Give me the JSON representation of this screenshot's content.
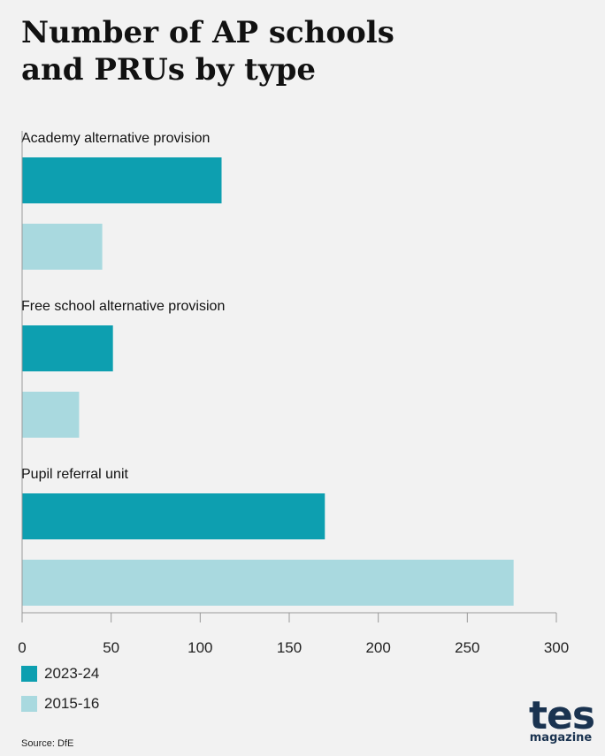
{
  "title_lines": [
    "Number of AP schools",
    "and PRUs by type"
  ],
  "source": "Source: DfE",
  "logo": {
    "main": "tes",
    "sub": "magazine"
  },
  "colors": {
    "series_2023": "#0d9fb0",
    "series_2015": "#a9d9df",
    "axis": "#999999",
    "background": "#f2f2f2"
  },
  "chart_data": {
    "type": "bar",
    "orientation": "horizontal",
    "categories": [
      "Academy alternative provision",
      "Free school alternative provision",
      "Pupil referral unit"
    ],
    "series": [
      {
        "name": "2023-24",
        "values": [
          112,
          51,
          170
        ]
      },
      {
        "name": "2015-16",
        "values": [
          45,
          32,
          276
        ]
      }
    ],
    "xlim": [
      0,
      300
    ],
    "x_ticks": [
      "0",
      "50",
      "100",
      "150",
      "200",
      "250",
      "300"
    ],
    "grid": false,
    "legend_position": "bottom-left"
  }
}
